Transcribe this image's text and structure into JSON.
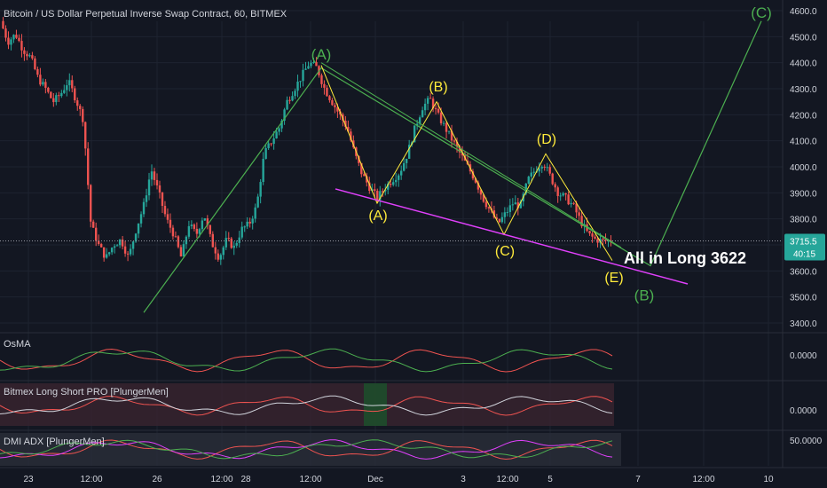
{
  "header": {
    "title": "Bitcoin / US Dollar Perpetual Inverse Swap Contract, 60, BITMEX"
  },
  "colors": {
    "background": "#131722",
    "grid": "#1e2330",
    "candle_up": "#26a69a",
    "candle_down": "#ef5350",
    "wave_green": "#4caf50",
    "wave_yellow": "#ffeb3b",
    "trendline_magenta": "#e040fb",
    "price_badge": "#26a69a",
    "annotation_text": "#ffffff"
  },
  "chart_data": {
    "type": "candlestick",
    "title": "Bitcoin / US Dollar Perpetual Inverse Swap Contract, 60, BITMEX",
    "y_axis": {
      "ylim": [
        3380,
        4640
      ],
      "ticks": [
        "4600.0",
        "4500.0",
        "4400.0",
        "4300.0",
        "4200.0",
        "4100.0",
        "4000.0",
        "3900.0",
        "3800.0",
        "3700.0",
        "3600.0",
        "3500.0",
        "3400.0"
      ],
      "tick_values": [
        4600,
        4500,
        4400,
        4300,
        4200,
        4100,
        4000,
        3900,
        3800,
        3700,
        3600,
        3500,
        3400
      ]
    },
    "x_axis": {
      "ticks": [
        "23",
        "12:00",
        "26",
        "12:00",
        "28",
        "12:00",
        "Dec",
        "3",
        "12:00",
        "5",
        "7",
        "12:00",
        "10"
      ]
    },
    "price_path": [
      [
        4560,
        4480
      ],
      [
        4510,
        4450
      ],
      [
        4420,
        4340
      ],
      [
        4300,
        4250
      ],
      [
        4280,
        4330
      ],
      [
        4260,
        4180
      ],
      [
        3780,
        3700
      ],
      [
        3650,
        3700
      ],
      [
        3720,
        3650
      ],
      [
        3760,
        3850
      ],
      [
        3990,
        3900
      ],
      [
        3800,
        3740
      ],
      [
        3650,
        3780
      ],
      [
        3740,
        3820
      ],
      [
        3710,
        3650
      ],
      [
        3720,
        3690
      ],
      [
        3760,
        3780
      ],
      [
        3850,
        4050
      ],
      [
        4100,
        4150
      ],
      [
        4250,
        4300
      ],
      [
        4350,
        4400
      ],
      [
        4380,
        4300
      ],
      [
        4250,
        4200
      ],
      [
        4150,
        4050
      ],
      [
        3970,
        3920
      ],
      [
        3880,
        3920
      ],
      [
        3950,
        3980
      ],
      [
        4050,
        4150
      ],
      [
        4230,
        4260
      ],
      [
        4200,
        4150
      ],
      [
        4100,
        4050
      ],
      [
        4000,
        3950
      ],
      [
        3880,
        3830
      ],
      [
        3780,
        3820
      ],
      [
        3860,
        3850
      ],
      [
        3950,
        3990
      ],
      [
        4020,
        3960
      ],
      [
        3900,
        3880
      ],
      [
        3850,
        3790
      ],
      [
        3740,
        3720
      ],
      [
        3715.5,
        3715.5
      ]
    ],
    "current_price": {
      "value": 3715.5,
      "label": "3715.5",
      "countdown": "40:15"
    },
    "wave_labels": {
      "green": [
        {
          "label": "(A)",
          "price": 4420
        },
        {
          "label": "(B)",
          "price": 3590
        },
        {
          "label": "(C)",
          "price": 4600
        }
      ],
      "yellow": [
        {
          "label": "(A)",
          "price": 3820
        },
        {
          "label": "(B)",
          "price": 4270
        },
        {
          "label": "(C)",
          "price": 3690
        },
        {
          "label": "(D)",
          "price": 4070
        },
        {
          "label": "(E)",
          "price": 3590
        }
      ]
    },
    "annotation": {
      "text": "All in Long 3622"
    },
    "indicators": [
      {
        "name": "OsMA",
        "value_label": "0.0000"
      },
      {
        "name": "Bitmex Long Short PRO [PlungerMen]",
        "value_label": "0.0000"
      },
      {
        "name": "DMI ADX [PlungerMen]",
        "value_label": "50.0000"
      }
    ]
  }
}
